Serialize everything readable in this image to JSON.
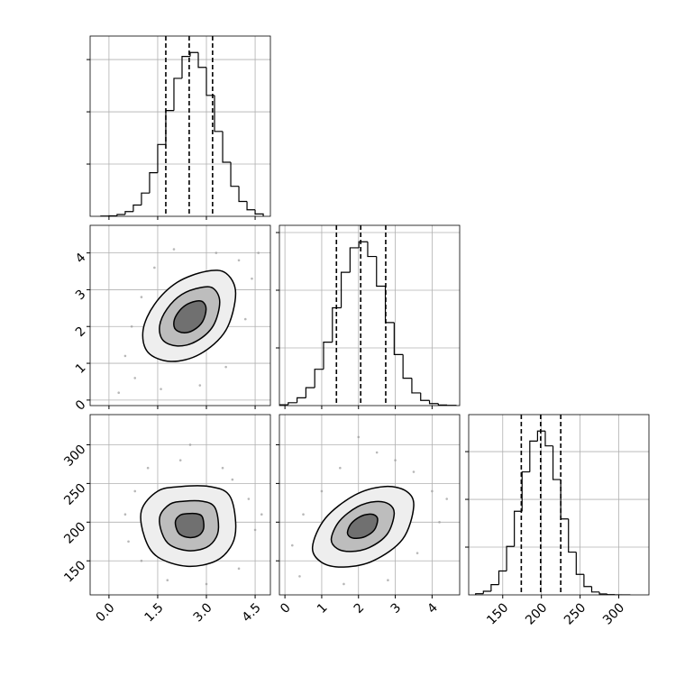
{
  "chart_data": [
    {
      "type": "histogram",
      "xlim": [
        -0.58,
        4.97
      ],
      "ylim": [
        0,
        690
      ],
      "xticks": [
        0,
        1.5,
        3,
        4.5
      ],
      "yticks": [
        200,
        400,
        600
      ],
      "grid": true,
      "xticklabels": false,
      "yticklabels": false,
      "color": "#000000",
      "bins": [
        -0.25,
        0,
        0.25,
        0.5,
        0.75,
        1,
        1.25,
        1.5,
        1.75,
        2,
        2.25,
        2.5,
        2.75,
        3,
        3.25,
        3.5,
        3.75,
        4,
        4.25,
        4.5,
        4.75
      ],
      "counts": [
        1,
        2,
        7,
        18,
        43,
        89,
        167,
        275,
        405,
        528,
        612,
        627,
        570,
        463,
        325,
        207,
        115,
        57,
        25,
        9
      ],
      "quantiles": [
        1.75,
        2.47,
        3.19
      ]
    },
    {
      "type": "contour",
      "xlim": [
        -0.58,
        4.97
      ],
      "ylim": [
        -0.15,
        4.75
      ],
      "xticks": [
        0,
        1.5,
        3,
        4.5
      ],
      "yticks": [
        0,
        1,
        2,
        3,
        4
      ],
      "grid": true,
      "xticklabels": false,
      "yticklabels": true,
      "colors": [
        "#eeeeee",
        "#bdbdbd",
        "#707070"
      ],
      "point_color": "#9a9a9a",
      "scatter": {
        "x": [
          0.5,
          0.8,
          1.0,
          4.4,
          4.2,
          3.3,
          2.0,
          0.3,
          1.6,
          4.6,
          3.6,
          0.7,
          2.8,
          4.0,
          1.4
        ],
        "y": [
          1.2,
          0.6,
          2.8,
          3.3,
          2.2,
          4.0,
          4.1,
          0.2,
          0.3,
          4.0,
          0.9,
          2.0,
          0.4,
          3.8,
          3.6
        ]
      },
      "contours": [
        {
          "x": [
            3.9,
            3.6,
            3.0,
            2.1,
            1.4,
            1.05,
            1.2,
            1.9,
            2.8,
            3.6
          ],
          "y": [
            2.9,
            3.45,
            3.5,
            3.2,
            2.6,
            1.9,
            1.3,
            1.05,
            1.25,
            1.9
          ]
        },
        {
          "x": [
            3.41,
            3.22,
            2.83,
            2.24,
            1.79,
            1.56,
            1.66,
            2.11,
            2.69,
            3.21
          ],
          "y": [
            2.66,
            3.03,
            3.06,
            2.87,
            2.48,
            2.02,
            1.63,
            1.47,
            1.6,
            2.02
          ]
        },
        {
          "x": [
            2.99,
            2.89,
            2.68,
            2.36,
            2.12,
            2.0,
            2.05,
            2.3,
            2.6,
            2.88
          ],
          "y": [
            2.47,
            2.67,
            2.69,
            2.58,
            2.37,
            2.13,
            1.92,
            1.83,
            1.9,
            2.13
          ]
        }
      ]
    },
    {
      "type": "histogram",
      "xlim": [
        -0.15,
        4.75
      ],
      "ylim": [
        0,
        625
      ],
      "xticks": [
        0,
        1,
        2,
        3,
        4
      ],
      "yticks": [
        200,
        400,
        600
      ],
      "grid": true,
      "xticklabels": false,
      "yticklabels": false,
      "color": "#000000",
      "bins": [
        -0.15,
        0.09,
        0.33,
        0.57,
        0.81,
        1.05,
        1.29,
        1.53,
        1.77,
        2.01,
        2.25,
        2.49,
        2.73,
        2.97,
        3.21,
        3.45,
        3.69,
        3.93,
        4.17,
        4.41,
        4.65
      ],
      "counts": [
        3,
        10,
        27,
        62,
        126,
        220,
        339,
        462,
        547,
        568,
        517,
        414,
        288,
        177,
        95,
        44,
        18,
        7,
        2,
        1
      ],
      "quantiles": [
        1.4,
        2.06,
        2.74
      ]
    },
    {
      "type": "contour",
      "xlim": [
        -0.58,
        4.97
      ],
      "ylim": [
        106,
        339
      ],
      "xticks": [
        {
          "value": 0,
          "label": "0.0"
        },
        1.5,
        {
          "value": 3,
          "label": "3.0"
        },
        4.5
      ],
      "yticks": [
        150,
        200,
        250,
        300
      ],
      "grid": true,
      "xticklabels": true,
      "yticklabels": true,
      "colors": [
        "#eeeeee",
        "#bdbdbd",
        "#707070"
      ],
      "point_color": "#9a9a9a",
      "scatter": {
        "x": [
          0.5,
          0.8,
          1.2,
          2.5,
          3.5,
          4.3,
          4.5,
          4.0,
          3.0,
          1.8,
          0.6,
          2.2,
          3.8,
          1.0,
          4.7
        ],
        "y": [
          210,
          240,
          270,
          300,
          270,
          230,
          190,
          140,
          120,
          125,
          175,
          280,
          255,
          150,
          210
        ]
      },
      "contours": [
        {
          "x": [
            3.9,
            3.7,
            3.1,
            2.2,
            1.5,
            1.0,
            1.1,
            1.5,
            2.4,
            3.3,
            3.8
          ],
          "y": [
            200,
            235,
            246,
            246,
            240,
            215,
            180,
            155,
            143,
            150,
            172
          ]
        },
        {
          "x": [
            3.37,
            3.24,
            2.87,
            2.31,
            1.88,
            1.57,
            1.63,
            1.88,
            2.44,
            3.0,
            3.31
          ],
          "y": [
            198.5,
            220.2,
            227.0,
            227.0,
            223.3,
            207.8,
            186.1,
            170.5,
            163.1,
            167.4,
            181.1
          ]
        },
        {
          "x": [
            2.92,
            2.86,
            2.68,
            2.41,
            2.2,
            2.05,
            2.08,
            2.2,
            2.47,
            2.74,
            2.89
          ],
          "y": [
            197.2,
            207.7,
            211.0,
            211.0,
            209.2,
            201.7,
            191.2,
            183.7,
            180.1,
            182.2,
            188.8
          ]
        }
      ]
    },
    {
      "type": "contour",
      "xlim": [
        -0.15,
        4.75
      ],
      "ylim": [
        106,
        339
      ],
      "xticks": [
        0,
        1,
        2,
        3,
        4
      ],
      "yticks": [
        150,
        200,
        250,
        300
      ],
      "grid": true,
      "xticklabels": true,
      "yticklabels": false,
      "colors": [
        "#eeeeee",
        "#bdbdbd",
        "#707070"
      ],
      "point_color": "#9a9a9a",
      "scatter": {
        "x": [
          0.2,
          0.4,
          1.0,
          1.5,
          2.5,
          3.5,
          4.0,
          4.2,
          3.6,
          2.8,
          1.6,
          0.5,
          3.0,
          2.0,
          4.4
        ],
        "y": [
          170,
          130,
          240,
          270,
          290,
          265,
          240,
          200,
          160,
          125,
          120,
          210,
          280,
          310,
          230
        ]
      },
      "contours": [
        {
          "x": [
            3.5,
            3.3,
            2.7,
            1.9,
            1.1,
            0.75,
            1.0,
            1.6,
            2.4,
            3.2
          ],
          "y": [
            220,
            240,
            246,
            235,
            205,
            168,
            148,
            142,
            150,
            178
          ]
        },
        {
          "x": [
            2.97,
            2.84,
            2.47,
            1.97,
            1.48,
            1.26,
            1.42,
            1.79,
            2.29,
            2.78
          ],
          "y": [
            210.5,
            222.9,
            226.6,
            219.8,
            201.2,
            178.3,
            165.9,
            162.1,
            167.1,
            184.5
          ]
        },
        {
          "x": [
            2.52,
            2.46,
            2.28,
            2.04,
            1.8,
            1.7,
            1.77,
            1.95,
            2.19,
            2.43
          ],
          "y": [
            202.5,
            208.5,
            210.3,
            207.0,
            198.0,
            186.9,
            180.9,
            179.1,
            181.5,
            189.9
          ]
        }
      ]
    },
    {
      "type": "histogram",
      "xlim": [
        106,
        339
      ],
      "ylim": [
        0,
        755
      ],
      "xticks": [
        150,
        200,
        250,
        300
      ],
      "yticks": [
        200,
        400,
        600
      ],
      "grid": true,
      "xticklabels": true,
      "yticklabels": false,
      "color": "#000000",
      "bins": [
        115,
        125,
        135,
        145,
        155,
        165,
        175,
        185,
        195,
        205,
        215,
        225,
        235,
        245,
        255,
        265,
        275,
        285,
        295,
        305,
        315
      ],
      "counts": [
        5,
        15,
        43,
        100,
        203,
        350,
        515,
        644,
        686,
        624,
        483,
        318,
        179,
        86,
        35,
        12,
        4,
        1,
        0,
        0
      ],
      "quantiles": [
        174,
        199,
        225
      ]
    }
  ]
}
